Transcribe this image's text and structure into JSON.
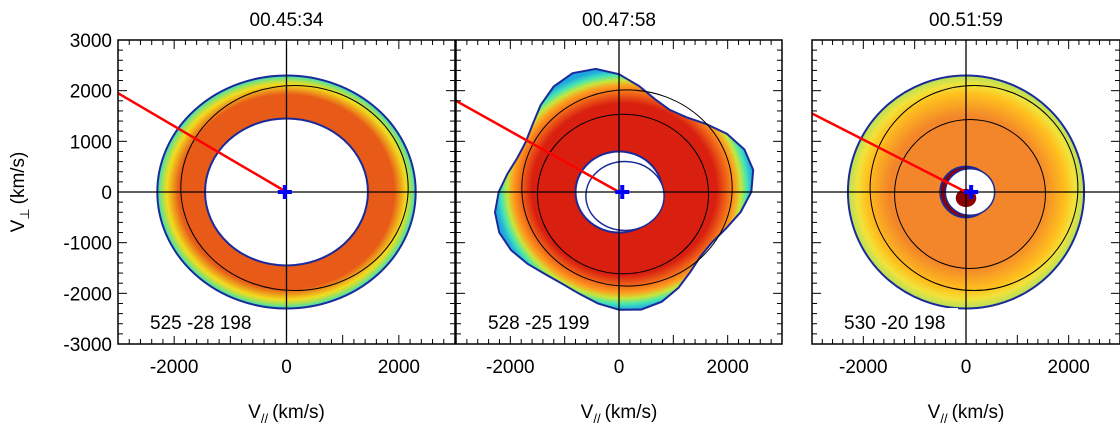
{
  "figure": {
    "ylabel_main": "V",
    "ylabel_sub": "⊥",
    "ylabel_units": "(km/s)",
    "xlabel_main": "V",
    "xlabel_sub": "//",
    "xlabel_units": "(km/s)"
  },
  "chart_data": [
    {
      "type": "heatmap",
      "title": "00.45:34",
      "annotation": "525 -28 198",
      "xlim": [
        -3000,
        3000
      ],
      "ylim": [
        -3000,
        3000
      ],
      "xticks": [
        -2000,
        0,
        2000
      ],
      "yticks": [
        3000,
        2000,
        1000,
        0,
        -1000,
        -2000,
        -3000
      ],
      "grid": false,
      "structure": "ring",
      "outer_radius": 2300,
      "inner_radius": 1450,
      "core_color": "#ffffff",
      "ring_color": "#e85a18",
      "edge_colors": [
        "#f2dc1e",
        "#9fe05a",
        "#2fe0c6"
      ],
      "red_line": {
        "from": [
          -3000,
          1950
        ],
        "to": [
          0,
          0
        ],
        "color": "#ff0000"
      },
      "marker": {
        "x": -30,
        "y": 0,
        "symbol": "+",
        "color": "#0000ff"
      }
    },
    {
      "type": "heatmap",
      "title": "00.47:58",
      "annotation": "528 -25 199",
      "xlim": [
        -3000,
        3000
      ],
      "ylim": [
        -3000,
        3000
      ],
      "xticks": [
        -2000,
        0,
        2000
      ],
      "yticks": [
        3000,
        2000,
        1000,
        0,
        -1000,
        -2000,
        -3000
      ],
      "grid": false,
      "structure": "blob",
      "outer_radius": 2200,
      "inner_radius": 800,
      "core_color": "#ffffff",
      "ring_color": "#d91f10",
      "edge_colors": [
        "#ff9a1e",
        "#c8e63a",
        "#44e6b4",
        "#20a6e0"
      ],
      "red_line": {
        "from": [
          -3000,
          1800
        ],
        "to": [
          0,
          0
        ],
        "color": "#ff0000"
      },
      "marker": {
        "x": 60,
        "y": 0,
        "symbol": "+",
        "color": "#0000ff"
      }
    },
    {
      "type": "heatmap",
      "title": "00.51:59",
      "annotation": "530 -20 198",
      "xlim": [
        -3000,
        3000
      ],
      "ylim": [
        -3000,
        3000
      ],
      "xticks": [
        -2000,
        0,
        2000
      ],
      "yticks": [
        3000,
        2000,
        1000,
        0,
        -1000,
        -2000,
        -3000
      ],
      "grid": false,
      "structure": "disk",
      "outer_radius": 2300,
      "inner_radius": 500,
      "core_color": "#8c0000",
      "ring_color": "#f3852a",
      "edge_colors": [
        "#ffc01e",
        "#f2e23a",
        "#b6e05a"
      ],
      "red_line": {
        "from": [
          -3000,
          1550
        ],
        "to": [
          0,
          0
        ],
        "color": "#ff0000"
      },
      "marker": {
        "x": 100,
        "y": 0,
        "symbol": "+",
        "color": "#0000ff"
      }
    }
  ]
}
